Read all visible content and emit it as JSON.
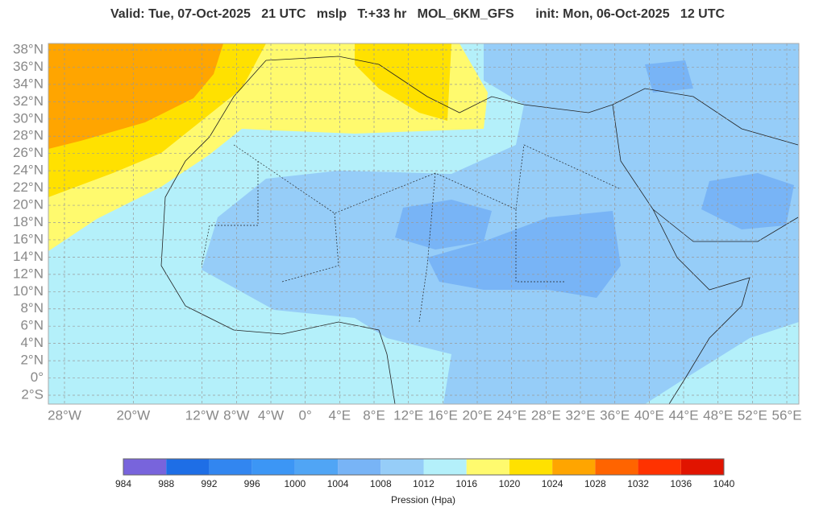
{
  "title": "Valid: Tue, 07-Oct-2025   21 UTC   mslp   T:+33 hr   MOL_6KM_GFS      init: Mon, 06-Oct-2025   12 UTC",
  "map": {
    "lat_ticks": [
      {
        "value": 38,
        "label": "38°N"
      },
      {
        "value": 36,
        "label": "36°N"
      },
      {
        "value": 34,
        "label": "34°N"
      },
      {
        "value": 32,
        "label": "32°N"
      },
      {
        "value": 30,
        "label": "30°N"
      },
      {
        "value": 28,
        "label": "28°N"
      },
      {
        "value": 26,
        "label": "26°N"
      },
      {
        "value": 24,
        "label": "24°N"
      },
      {
        "value": 22,
        "label": "22°N"
      },
      {
        "value": 20,
        "label": "20°N"
      },
      {
        "value": 18,
        "label": "18°N"
      },
      {
        "value": 16,
        "label": "16°N"
      },
      {
        "value": 14,
        "label": "14°N"
      },
      {
        "value": 12,
        "label": "12°N"
      },
      {
        "value": 10,
        "label": "10°N"
      },
      {
        "value": 8,
        "label": "8°N"
      },
      {
        "value": 6,
        "label": "6°N"
      },
      {
        "value": 4,
        "label": "4°N"
      },
      {
        "value": 2,
        "label": "2°N"
      },
      {
        "value": 0,
        "label": "0°"
      },
      {
        "value": -2,
        "label": "2°S"
      }
    ],
    "lon_ticks": [
      {
        "value": -28,
        "label": "28°W"
      },
      {
        "value": -20,
        "label": "20°W"
      },
      {
        "value": -12,
        "label": "12°W"
      },
      {
        "value": -8,
        "label": "8°W"
      },
      {
        "value": -4,
        "label": "4°W"
      },
      {
        "value": 0,
        "label": "0°"
      },
      {
        "value": 4,
        "label": "4°E"
      },
      {
        "value": 8,
        "label": "8°E"
      },
      {
        "value": 12,
        "label": "12°E"
      },
      {
        "value": 16,
        "label": "16°E"
      },
      {
        "value": 20,
        "label": "20°E"
      },
      {
        "value": 24,
        "label": "24°E"
      },
      {
        "value": 28,
        "label": "28°E"
      },
      {
        "value": 32,
        "label": "32°E"
      },
      {
        "value": 36,
        "label": "36°E"
      },
      {
        "value": 40,
        "label": "40°E"
      },
      {
        "value": 44,
        "label": "44°E"
      },
      {
        "value": 48,
        "label": "48°E"
      },
      {
        "value": 52,
        "label": "52°E"
      },
      {
        "value": 56,
        "label": "56°E"
      }
    ]
  },
  "colorbar": {
    "title": "Pression (Hpa)",
    "levels": [
      984,
      988,
      992,
      996,
      1000,
      1004,
      1008,
      1012,
      1016,
      1020,
      1024,
      1028,
      1032,
      1036,
      1040
    ],
    "colors": [
      "#7864dc",
      "#1e6ee6",
      "#3286f0",
      "#3c96f5",
      "#50a5f5",
      "#78b4f6",
      "#96cdf8",
      "#b4f0fa",
      "#fffa6e",
      "#ffe100",
      "#ffa500",
      "#ff6400",
      "#ff3200",
      "#e11400"
    ]
  }
}
